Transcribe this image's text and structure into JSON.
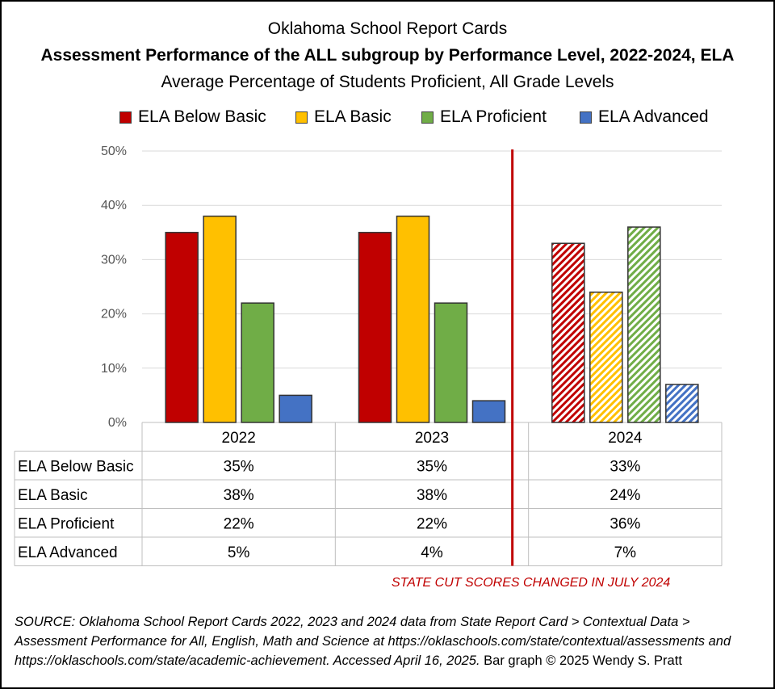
{
  "chart_data": {
    "type": "bar",
    "title": "Oklahoma School Report Cards",
    "subtitle": "Assessment Performance of the ALL subgroup by Performance Level, 2022-2024, ELA",
    "subtitle2": "Average Percentage of Students Proficient, All Grade Levels",
    "categories": [
      "2022",
      "2023",
      "2024"
    ],
    "series": [
      {
        "name": "ELA Below Basic",
        "values": [
          35,
          35,
          33
        ],
        "labels": [
          "35%",
          "35%",
          "33%"
        ],
        "color": "#c00000"
      },
      {
        "name": "ELA Basic",
        "values": [
          38,
          38,
          24
        ],
        "labels": [
          "38%",
          "38%",
          "24%"
        ],
        "color": "#ffc000"
      },
      {
        "name": "ELA Proficient",
        "values": [
          22,
          22,
          36
        ],
        "labels": [
          "22%",
          "22%",
          "36%"
        ],
        "color": "#70ad47"
      },
      {
        "name": "ELA Advanced",
        "values": [
          5,
          4,
          7
        ],
        "labels": [
          "5%",
          "4%",
          "7%"
        ],
        "color": "#4472c4"
      }
    ],
    "hatched_categories": [
      "2024"
    ],
    "ylim": [
      0,
      50
    ],
    "yticks": [
      "0%",
      "10%",
      "20%",
      "30%",
      "40%",
      "50%"
    ],
    "grid": true,
    "legend": "top",
    "data_table": true,
    "annotation": "STATE CUT SCORES CHANGED IN JULY 2024",
    "annotation_color": "#c00000",
    "divider_color": "#c00000"
  },
  "source": {
    "italic": "SOURCE: Oklahoma School Report Cards 2022, 2023 and 2024 data from State Report Card > Contextual Data > Assessment Performance for All, English, Math and Science at https://oklaschools.com/state/contextual/assessments and https://oklaschools.com/state/academic-achievement. Accessed April 16, 2025.",
    "plain": " Bar graph © 2025 Wendy S. Pratt"
  }
}
